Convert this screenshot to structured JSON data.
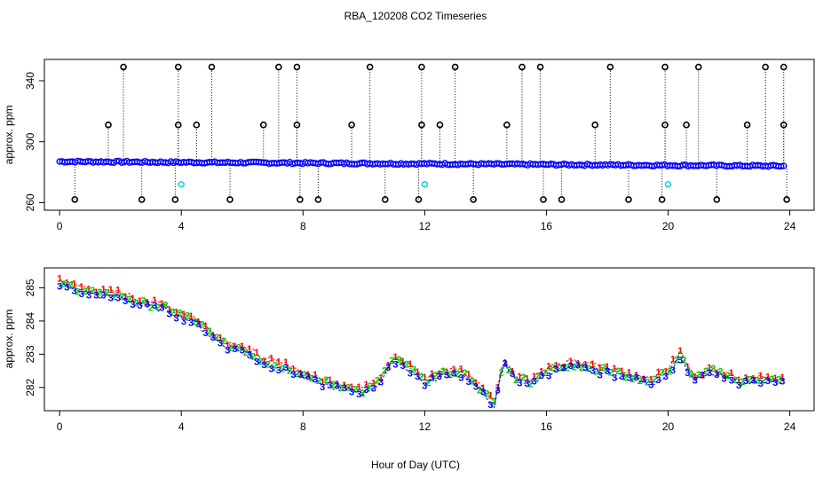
{
  "title": "RBA_120208  CO2 Timeseries",
  "xlabel": "Hour of Day (UTC)",
  "colors": {
    "circle_black": "#000000",
    "circle_blue": "#0000ff",
    "circle_cyan": "#00cccc",
    "s1": "#ff0000",
    "s2": "#00cc00",
    "s3": "#0000ff"
  },
  "chart_data": [
    {
      "type": "scatter",
      "panel": "top",
      "ylabel": "approx. ppm",
      "xlim": [
        -0.5,
        24.8
      ],
      "ylim": [
        255,
        354
      ],
      "x_ticks": [
        0,
        4,
        8,
        12,
        16,
        20,
        24
      ],
      "y_ticks": [
        260,
        300,
        340
      ],
      "baseline_start": 287,
      "baseline_end": 284,
      "high_spikes_x": [
        2.1,
        3.9,
        5.0,
        7.2,
        7.8,
        10.2,
        11.9,
        13.0,
        15.2,
        15.8,
        18.1,
        19.9,
        21.0,
        23.2,
        23.8
      ],
      "mid_spikes_x": [
        1.6,
        3.9,
        4.5,
        6.7,
        7.8,
        9.6,
        11.9,
        12.5,
        14.7,
        17.6,
        19.9,
        20.6,
        22.6,
        23.8
      ],
      "low_spikes_x": [
        0.5,
        2.7,
        3.8,
        5.6,
        7.9,
        8.5,
        10.7,
        11.8,
        13.6,
        15.9,
        16.5,
        18.7,
        19.8,
        21.6,
        23.9
      ],
      "high_value": 349,
      "mid_value": 311,
      "low_value": 262,
      "cyan_points": [
        [
          4.0,
          272
        ],
        [
          12.0,
          272
        ],
        [
          20.0,
          272
        ]
      ]
    },
    {
      "type": "line",
      "panel": "bottom",
      "ylabel": "approx. ppm",
      "xlim": [
        -0.5,
        24.8
      ],
      "ylim": [
        281.3,
        285.6
      ],
      "x_ticks": [
        0,
        4,
        8,
        12,
        16,
        20,
        24
      ],
      "y_ticks": [
        282,
        283,
        284,
        285
      ],
      "series": [
        {
          "name": "1",
          "offset": 0.08
        },
        {
          "name": "2",
          "offset": 0.0
        },
        {
          "name": "3",
          "offset": -0.08
        }
      ],
      "x": [
        0.0,
        0.5,
        1.0,
        1.5,
        2.0,
        2.5,
        3.0,
        3.5,
        4.0,
        4.5,
        5.0,
        5.5,
        6.0,
        6.5,
        7.0,
        7.5,
        8.0,
        8.5,
        9.0,
        9.5,
        10.0,
        10.5,
        11.0,
        11.5,
        12.0,
        12.5,
        13.0,
        13.5,
        14.0,
        14.3,
        14.6,
        15.0,
        15.5,
        16.0,
        16.5,
        17.0,
        17.5,
        18.0,
        18.5,
        19.0,
        19.5,
        20.0,
        20.4,
        20.8,
        21.5,
        22.0,
        22.5,
        23.0,
        23.5,
        23.8
      ],
      "values": [
        285.2,
        285.0,
        284.9,
        284.8,
        284.8,
        284.6,
        284.5,
        284.4,
        284.2,
        284.0,
        283.6,
        283.3,
        283.2,
        282.9,
        282.7,
        282.6,
        282.4,
        282.2,
        282.1,
        282.0,
        281.9,
        282.2,
        282.9,
        282.6,
        282.2,
        282.4,
        282.5,
        282.3,
        281.8,
        281.5,
        282.8,
        282.3,
        282.2,
        282.5,
        282.6,
        282.7,
        282.6,
        282.5,
        282.4,
        282.3,
        282.2,
        282.5,
        283.0,
        282.3,
        282.5,
        282.3,
        282.2,
        282.3,
        282.2,
        282.2
      ]
    }
  ],
  "panels": {
    "top": {
      "y_tick_labels": [
        "260",
        "300",
        "340"
      ],
      "x_tick_labels": [
        "0",
        "4",
        "8",
        "12",
        "16",
        "20",
        "24"
      ]
    },
    "bottom": {
      "y_tick_labels": [
        "282",
        "283",
        "284",
        "285"
      ],
      "x_tick_labels": [
        "0",
        "4",
        "8",
        "12",
        "16",
        "20",
        "24"
      ]
    }
  }
}
